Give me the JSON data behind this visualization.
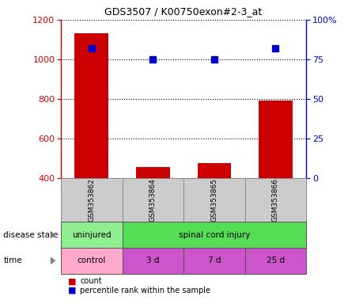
{
  "title": "GDS3507 / K00750exon#2-3_at",
  "samples": [
    "GSM353862",
    "GSM353864",
    "GSM353865",
    "GSM353866"
  ],
  "counts": [
    1130,
    455,
    475,
    790
  ],
  "percentile_ranks": [
    82,
    75,
    75,
    82
  ],
  "ylim_left": [
    400,
    1200
  ],
  "ylim_right": [
    0,
    100
  ],
  "yticks_left": [
    400,
    600,
    800,
    1000,
    1200
  ],
  "yticks_right": [
    0,
    25,
    50,
    75,
    100
  ],
  "bar_color": "#cc0000",
  "dot_color": "#0000cc",
  "disease_state_labels": [
    "uninjured",
    "spinal cord injury"
  ],
  "disease_state_colors": [
    "#90ee90",
    "#55dd55"
  ],
  "time_labels": [
    "control",
    "3 d",
    "7 d",
    "25 d"
  ],
  "time_colors": [
    "#ffaacc",
    "#cc55cc",
    "#cc55cc",
    "#cc55cc"
  ],
  "ylabel_left_color": "#cc0000",
  "ylabel_right_color": "#0000cc",
  "grid_color": "#000000",
  "sample_box_bg": "#cccccc",
  "sample_box_edge": "#888888",
  "legend_count_color": "#cc0000",
  "legend_pct_color": "#0000cc",
  "bar_width": 0.55
}
